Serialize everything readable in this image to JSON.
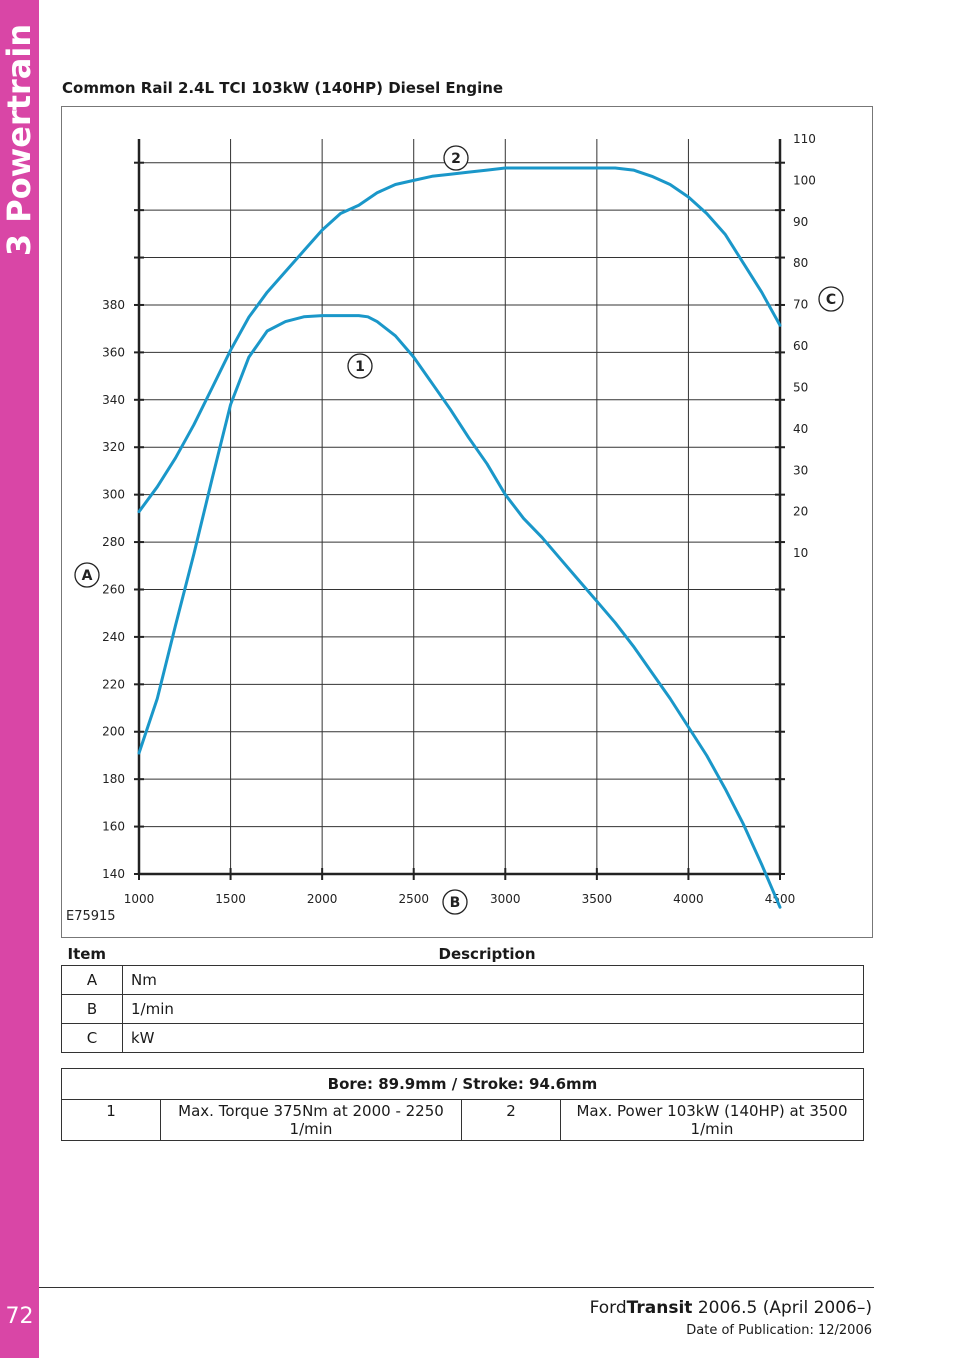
{
  "section": {
    "title": "3 Powertrain",
    "page_number": "72"
  },
  "heading": "Common Rail 2.4L TCI 103kW (140HP) Diesel Engine",
  "colors": {
    "sidebar": "#d946a6",
    "curve": "#1a97c9"
  },
  "chart_data": {
    "type": "line",
    "figure_id": "E75915",
    "x": {
      "ticks": [
        1000,
        1500,
        2000,
        2500,
        3000,
        3500,
        4000,
        4500
      ],
      "range": [
        1000,
        4500
      ]
    },
    "y_left": {
      "ticks": [
        140,
        160,
        180,
        200,
        220,
        240,
        260,
        280,
        300,
        320,
        340,
        360,
        380
      ],
      "range": [
        140,
        450
      ]
    },
    "y_right": {
      "ticks": [
        10,
        20,
        30,
        40,
        50,
        60,
        70,
        80,
        90,
        100,
        110
      ],
      "range": [
        -67.5,
        110
      ]
    },
    "grid": true,
    "axis_markers": {
      "left": "A",
      "bottom": "B",
      "right": "C"
    },
    "series": [
      {
        "marker": "1",
        "axis": "left",
        "x": [
          1000,
          1100,
          1200,
          1300,
          1400,
          1500,
          1600,
          1700,
          1800,
          1900,
          2000,
          2100,
          2200,
          2250,
          2300,
          2400,
          2500,
          2600,
          2700,
          2800,
          2900,
          3000,
          3100,
          3200,
          3300,
          3400,
          3500,
          3600,
          3700,
          3800,
          3900,
          4000,
          4100,
          4200,
          4300,
          4400,
          4500
        ],
        "y": [
          191,
          214,
          245,
          275,
          307,
          338,
          358,
          369,
          373,
          375,
          375.5,
          375.5,
          375.5,
          375,
          373,
          367,
          358,
          347,
          336,
          324,
          313,
          300,
          290,
          282,
          273,
          264,
          255,
          246,
          236,
          225,
          214,
          202,
          190,
          176,
          161,
          144,
          126
        ]
      },
      {
        "marker": "2",
        "axis": "right",
        "x": [
          1000,
          1100,
          1200,
          1300,
          1400,
          1500,
          1600,
          1700,
          1800,
          1900,
          2000,
          2100,
          2200,
          2300,
          2400,
          2500,
          2600,
          2700,
          2800,
          2900,
          3000,
          3100,
          3200,
          3300,
          3400,
          3500,
          3600,
          3700,
          3800,
          3900,
          4000,
          4100,
          4200,
          4300,
          4400,
          4500
        ],
        "y": [
          20,
          26,
          33,
          41,
          50,
          59,
          67,
          73,
          78,
          83,
          88,
          92,
          94,
          97,
          99,
          100,
          101,
          101.5,
          102,
          102.5,
          103,
          103,
          103,
          103,
          103,
          103,
          103,
          102.5,
          101,
          99,
          96,
          92,
          87,
          80,
          73,
          65
        ]
      }
    ]
  },
  "items_table": {
    "headers": [
      "Item",
      "Description"
    ],
    "rows": [
      [
        "A",
        "Nm"
      ],
      [
        "B",
        "1/min"
      ],
      [
        "C",
        "kW"
      ]
    ]
  },
  "spec_table": {
    "title": "Bore: 89.9mm / Stroke: 94.6mm",
    "rows": [
      [
        "1",
        "Max. Torque 375Nm at 2000 - 2250 1/min",
        "2",
        "Max. Power 103kW (140HP) at 3500 1/min"
      ]
    ]
  },
  "footer": {
    "brand": "Ford",
    "model": "Transit",
    "edition": "2006.5 (April 2006–)",
    "date": "Date of Publication: 12/2006"
  }
}
